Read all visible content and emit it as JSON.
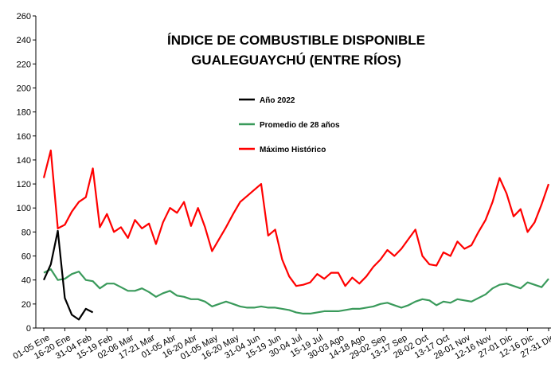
{
  "chart_data": {
    "type": "line",
    "title": [
      "ÍNDICE DE COMBUSTIBLE DISPONIBLE",
      "GUALEGUAYCHÚ (ENTRE RÍOS)"
    ],
    "categories": [
      "01-05 Ene",
      null,
      null,
      "16-20 Ene",
      null,
      null,
      "31-04 Feb",
      null,
      null,
      "15-19 Feb",
      null,
      null,
      "02-06 Mar",
      null,
      null,
      "17-21 Mar",
      null,
      null,
      "01-05 Abr",
      null,
      null,
      "16-20 Abr",
      null,
      null,
      "01-05 May",
      null,
      null,
      "16-20 May",
      null,
      null,
      "31-04 Jun",
      null,
      null,
      "15-19 Jun",
      null,
      null,
      "30-04 Jul",
      null,
      null,
      "15-19 Jul",
      null,
      null,
      "30-03 Ago",
      null,
      null,
      "14-18 Ago",
      null,
      null,
      "29-02 Sep",
      null,
      null,
      "13-17 Sep",
      null,
      null,
      "28-02 Oct",
      null,
      null,
      "13-17 Oct",
      null,
      null,
      "28-01 Nov",
      null,
      null,
      "12-16 Nov",
      null,
      null,
      "27-01 Dic",
      null,
      null,
      "12-16 Dic",
      null,
      null,
      "27-31 Dic"
    ],
    "series": [
      {
        "name": "Año 2022",
        "color": "#000000",
        "values": [
          40,
          53,
          81,
          25,
          11,
          7,
          16,
          13,
          null,
          null,
          null,
          null,
          null,
          null,
          null,
          null,
          null,
          null,
          null,
          null,
          null,
          null,
          null,
          null,
          null,
          null,
          null,
          null,
          null,
          null,
          null,
          null,
          null,
          null,
          null,
          null,
          null,
          null,
          null,
          null,
          null,
          null,
          null,
          null,
          null,
          null,
          null,
          null,
          null,
          null,
          null,
          null,
          null,
          null,
          null,
          null,
          null,
          null,
          null,
          null,
          null,
          null,
          null,
          null,
          null,
          null,
          null,
          null,
          null,
          null,
          null,
          null,
          null
        ]
      },
      {
        "name": "Promedio de 28 años",
        "color": "#3a9a5b",
        "values": [
          46,
          49,
          40,
          41,
          45,
          47,
          40,
          39,
          33,
          37,
          37,
          34,
          31,
          31,
          33,
          30,
          26,
          29,
          31,
          27,
          26,
          24,
          24,
          22,
          18,
          20,
          22,
          20,
          18,
          17,
          17,
          18,
          17,
          17,
          16,
          15,
          13,
          12,
          12,
          13,
          14,
          14,
          14,
          15,
          16,
          16,
          17,
          18,
          20,
          21,
          19,
          17,
          19,
          22,
          24,
          23,
          19,
          22,
          21,
          24,
          23,
          22,
          25,
          28,
          33,
          36,
          37,
          35,
          33,
          38,
          36,
          34,
          41
        ]
      },
      {
        "name": "Máximo Histórico",
        "color": "#ff0000",
        "values": [
          125,
          148,
          83,
          86,
          97,
          105,
          109,
          133,
          84,
          95,
          80,
          84,
          75,
          90,
          83,
          87,
          70,
          88,
          100,
          96,
          105,
          85,
          100,
          84,
          64,
          74,
          84,
          95,
          105,
          110,
          115,
          120,
          77,
          82,
          57,
          43,
          35,
          36,
          38,
          45,
          41,
          46,
          46,
          35,
          42,
          37,
          43,
          51,
          57,
          65,
          60,
          66,
          74,
          82,
          60,
          53,
          52,
          63,
          60,
          72,
          66,
          69,
          80,
          90,
          105,
          125,
          112,
          93,
          99,
          80,
          88,
          103,
          120
        ]
      }
    ],
    "ylim": [
      0,
      260
    ],
    "yticks": [
      0,
      20,
      40,
      60,
      80,
      100,
      120,
      140,
      160,
      180,
      200,
      220,
      240,
      260
    ]
  }
}
